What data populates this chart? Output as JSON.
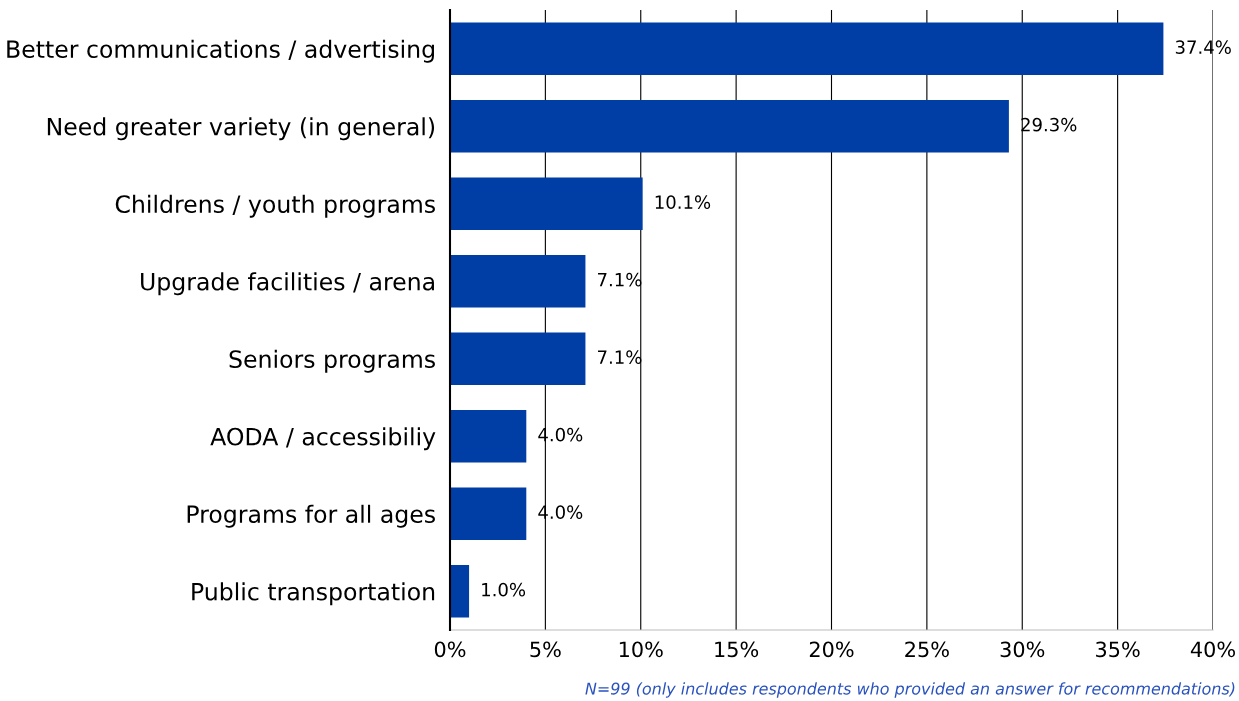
{
  "chart_data": {
    "type": "bar",
    "orientation": "horizontal",
    "categories": [
      "Better communications / advertising",
      "Need greater variety (in general)",
      "Childrens / youth programs",
      "Upgrade facilities / arena",
      "Seniors programs",
      "AODA / accessibiliy",
      "Programs for all ages",
      "Public transportation"
    ],
    "values": [
      37.4,
      29.3,
      10.1,
      7.1,
      7.1,
      4.0,
      4.0,
      1.0
    ],
    "value_labels": [
      "37.4%",
      "29.3%",
      "10.1%",
      "7.1%",
      "7.1%",
      "4.0%",
      "4.0%",
      "1.0%"
    ],
    "color": "#003da5",
    "xlim": [
      0,
      40
    ],
    "xticks": [
      {
        "value": 0,
        "label": "0%"
      },
      {
        "value": 5,
        "label": "5%"
      },
      {
        "value": 10,
        "label": "10%"
      },
      {
        "value": 15,
        "label": "15%"
      },
      {
        "value": 20,
        "label": "20%"
      },
      {
        "value": 25,
        "label": "25%"
      },
      {
        "value": 30,
        "label": "30%"
      },
      {
        "value": 35,
        "label": "35%"
      },
      {
        "value": 40,
        "label": "40%"
      }
    ],
    "grid": "x",
    "annotations": [
      "N=99 (only includes respondents who provided an answer for recommendations)"
    ]
  }
}
